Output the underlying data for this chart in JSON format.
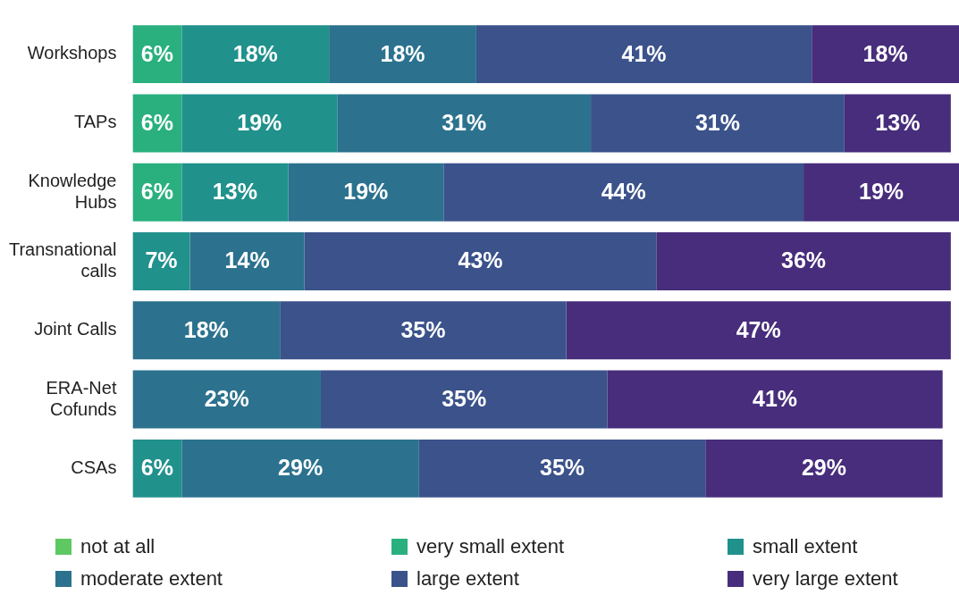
{
  "chart_data": {
    "type": "bar",
    "orientation": "horizontal",
    "stacked": true,
    "legend": "bottom",
    "categories": [
      "Workshops",
      "TAPs",
      "Knowledge Hubs",
      "Transnational calls",
      "Joint Calls",
      "ERA-Net Cofunds",
      "CSAs"
    ],
    "series": [
      {
        "name": "not at all",
        "color": "#5ec962",
        "values": [
          null,
          null,
          null,
          null,
          null,
          null,
          null
        ],
        "value_labels": [
          null,
          null,
          null,
          null,
          null,
          null,
          null
        ]
      },
      {
        "name": "very small extent",
        "color": "#2ab07f",
        "values": [
          6,
          6,
          6,
          null,
          null,
          null,
          null
        ],
        "value_labels": [
          "6%",
          "6%",
          "6%",
          null,
          null,
          null,
          null
        ]
      },
      {
        "name": "small extent",
        "color": "#21918c",
        "values": [
          18,
          19,
          13,
          7,
          null,
          null,
          6
        ],
        "value_labels": [
          "18%",
          "19%",
          "13%",
          "7%",
          null,
          null,
          "6%"
        ]
      },
      {
        "name": "moderate extent",
        "color": "#2c728e",
        "values": [
          18,
          31,
          19,
          14,
          18,
          23,
          29
        ],
        "value_labels": [
          "18%",
          "31%",
          "19%",
          "14%",
          "18%",
          "23%",
          "29%"
        ]
      },
      {
        "name": "large extent",
        "color": "#3b528b",
        "values": [
          41,
          31,
          44,
          43,
          35,
          35,
          35
        ],
        "value_labels": [
          "41%",
          "31%",
          "44%",
          "43%",
          "35%",
          "35%",
          "35%"
        ]
      },
      {
        "name": "very large extent",
        "color": "#472d7b",
        "values": [
          18,
          13,
          19,
          36,
          47,
          41,
          29
        ],
        "value_labels": [
          "18%",
          "13%",
          "19%",
          "36%",
          "47%",
          "41%",
          "29%"
        ]
      }
    ]
  }
}
